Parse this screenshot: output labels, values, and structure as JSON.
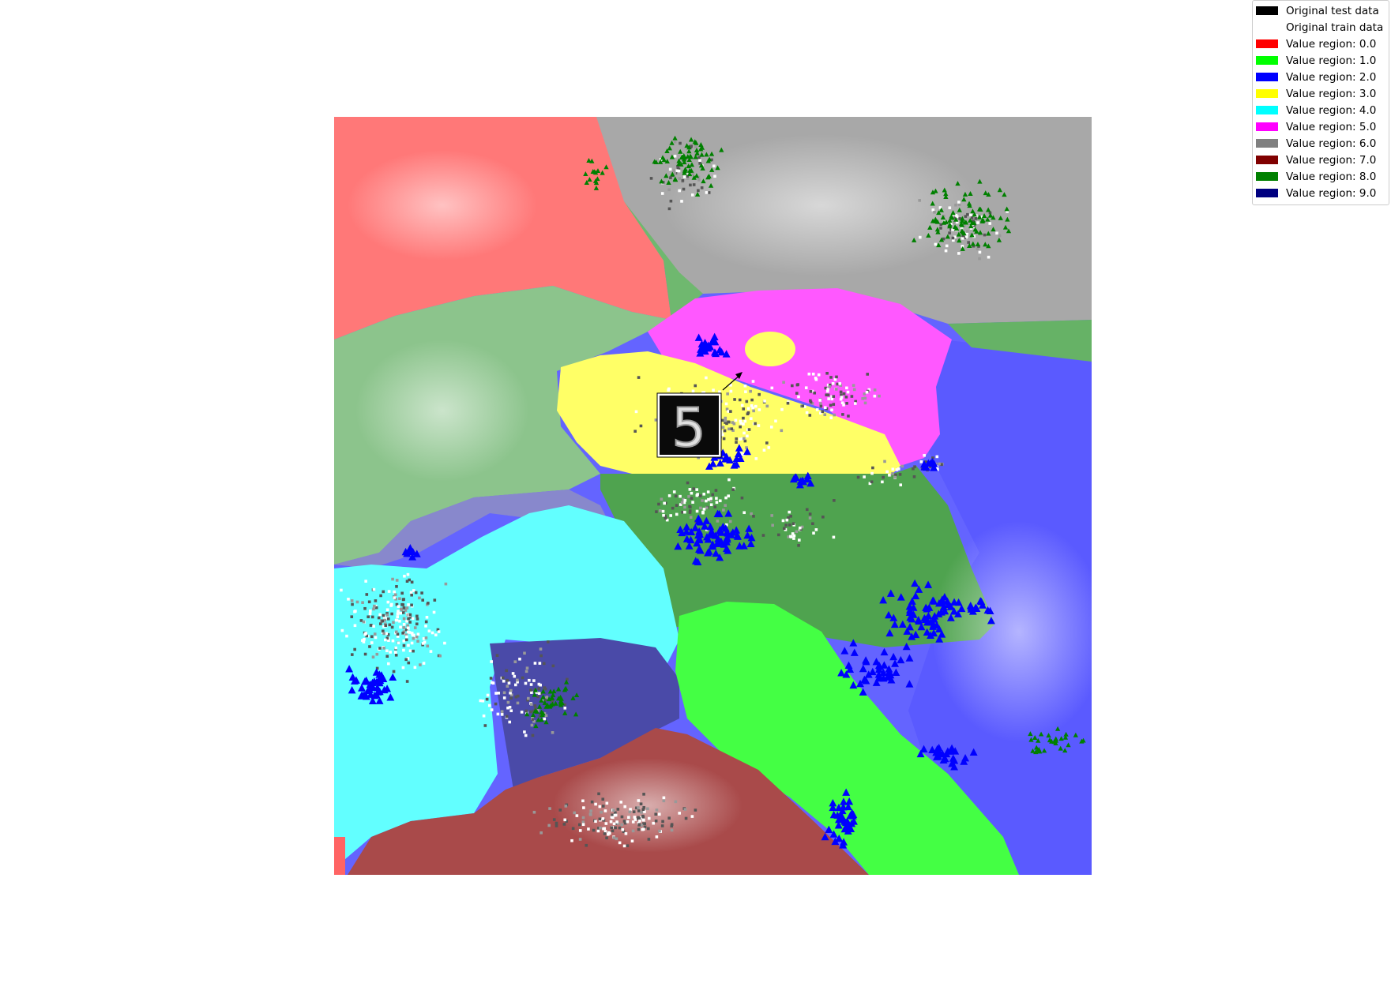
{
  "chart_data": {
    "type": "heatmap",
    "title": "",
    "xlabel": "",
    "ylabel": "",
    "axes_visible": false,
    "grid": false,
    "legend_placement": "top-right",
    "legend": [
      {
        "label": "Original test data",
        "color": "#000000"
      },
      {
        "label": "Original train data",
        "color": "#ffffff"
      },
      {
        "label": "Value region: 0.0",
        "color": "#ff0000"
      },
      {
        "label": "Value region: 1.0",
        "color": "#00ff00"
      },
      {
        "label": "Value region: 2.0",
        "color": "#0000ff"
      },
      {
        "label": "Value region: 3.0",
        "color": "#ffff00"
      },
      {
        "label": "Value region: 4.0",
        "color": "#00ffff"
      },
      {
        "label": "Value region: 5.0",
        "color": "#ff00ff"
      },
      {
        "label": "Value region: 6.0",
        "color": "#808080"
      },
      {
        "label": "Value region: 7.0",
        "color": "#800000"
      },
      {
        "label": "Value region: 8.0",
        "color": "#008000"
      },
      {
        "label": "Value region: 9.0",
        "color": "#000080"
      }
    ],
    "marker_series": [
      {
        "marker": "triangle",
        "color": "#0000ff"
      },
      {
        "marker": "triangle",
        "color": "#008000"
      }
    ],
    "inset_image": {
      "content": "handwritten digit",
      "text": "5"
    }
  }
}
